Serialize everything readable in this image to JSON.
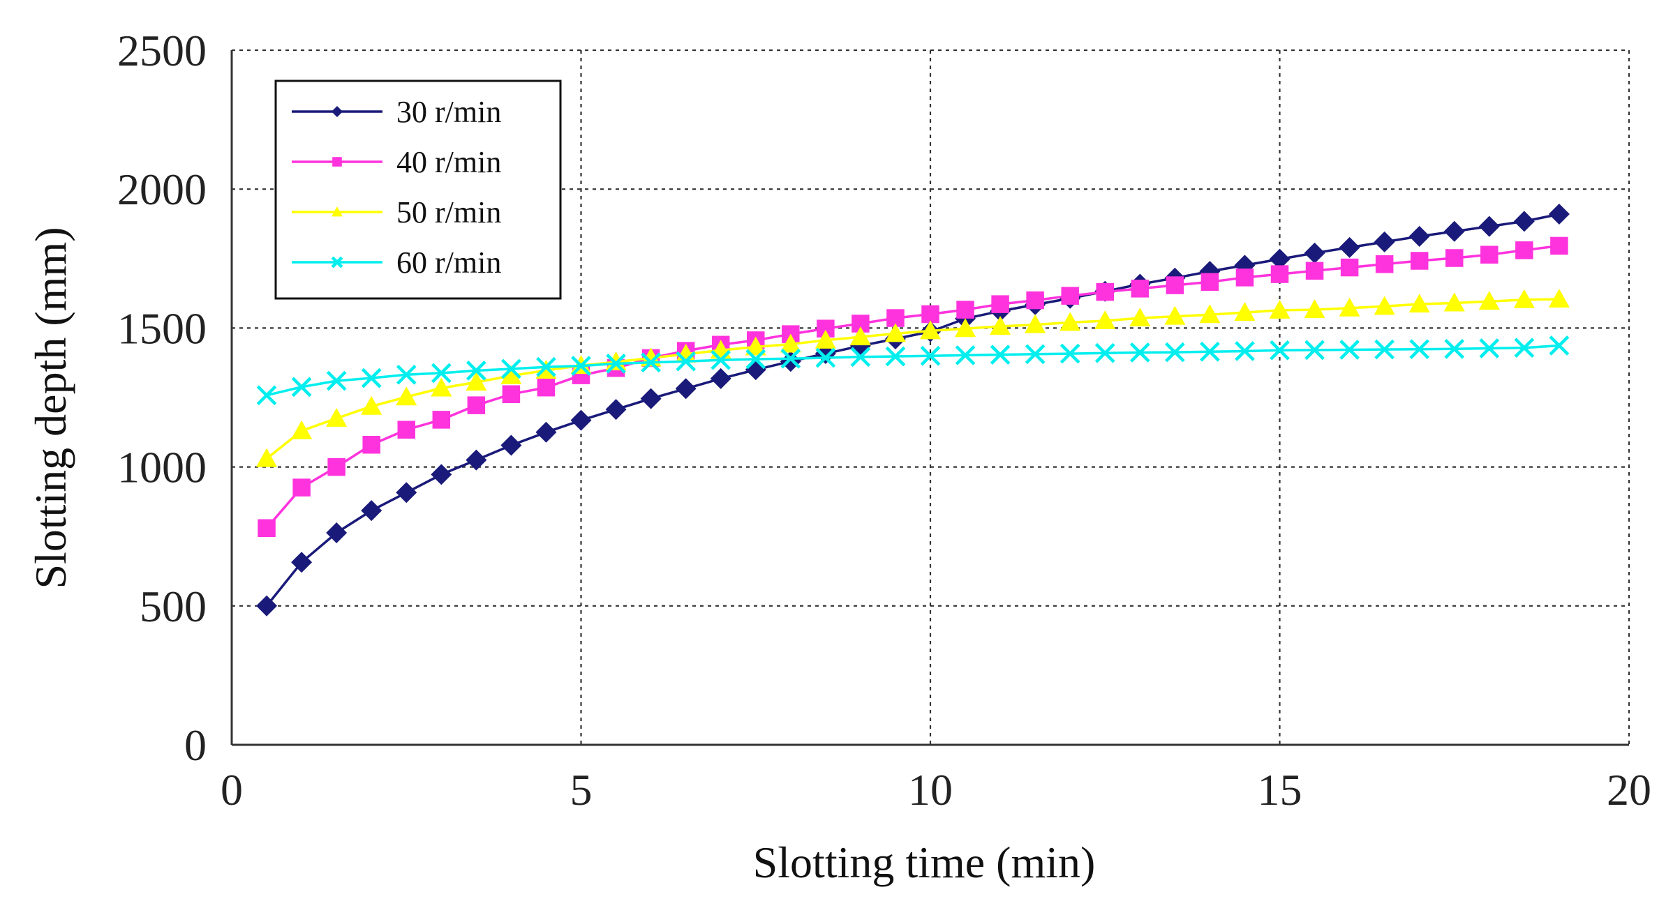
{
  "chart_data": {
    "type": "line",
    "title": "",
    "xlabel": "Slotting time (min)",
    "ylabel": "Slotting depth (mm)",
    "xlim": [
      0,
      20
    ],
    "ylim": [
      0,
      2500
    ],
    "xticks": [
      0,
      5,
      10,
      15,
      20
    ],
    "yticks": [
      0,
      500,
      1000,
      1500,
      2000,
      2500
    ],
    "grid": true,
    "legend_position": "top-left",
    "x": [
      0.5,
      1,
      1.5,
      2,
      2.5,
      3,
      3.5,
      4,
      4.5,
      5,
      5.5,
      6,
      6.5,
      7,
      7.5,
      8,
      8.5,
      9,
      9.5,
      10,
      10.5,
      11,
      11.5,
      12,
      12.5,
      13,
      13.5,
      14,
      14.5,
      15,
      15.5,
      16,
      16.5,
      17,
      17.5,
      18,
      18.5,
      19
    ],
    "series": [
      {
        "name": "30 r/min",
        "color": "#1a1a7a",
        "marker": "diamond",
        "values": [
          500,
          657,
          763,
          843,
          908,
          973,
          1025,
          1078,
          1125,
          1168,
          1207,
          1246,
          1282,
          1318,
          1350,
          1380,
          1408,
          1436,
          1461,
          1487,
          1534,
          1561,
          1584,
          1607,
          1632,
          1658,
          1680,
          1704,
          1726,
          1748,
          1770,
          1790,
          1810,
          1830,
          1848,
          1866,
          1884,
          1910
        ]
      },
      {
        "name": "40 r/min",
        "color": "#ff33dd",
        "marker": "square",
        "values": [
          780,
          926,
          1000,
          1080,
          1134,
          1170,
          1222,
          1262,
          1286,
          1330,
          1356,
          1392,
          1418,
          1440,
          1456,
          1478,
          1498,
          1516,
          1536,
          1550,
          1566,
          1586,
          1600,
          1616,
          1630,
          1642,
          1654,
          1666,
          1682,
          1694,
          1706,
          1718,
          1730,
          1742,
          1752,
          1764,
          1780,
          1796
        ]
      },
      {
        "name": "50 r/min",
        "color": "#ffff00",
        "marker": "triangle",
        "values": [
          1030,
          1130,
          1175,
          1218,
          1252,
          1284,
          1305,
          1328,
          1348,
          1365,
          1378,
          1392,
          1406,
          1420,
          1432,
          1442,
          1456,
          1468,
          1480,
          1490,
          1498,
          1506,
          1512,
          1520,
          1526,
          1536,
          1542,
          1548,
          1556,
          1564,
          1566,
          1572,
          1578,
          1586,
          1590,
          1596,
          1602,
          1604
        ]
      },
      {
        "name": "60 r/min",
        "color": "#00eeee",
        "marker": "x",
        "values": [
          1258,
          1288,
          1310,
          1320,
          1332,
          1338,
          1347,
          1353,
          1360,
          1364,
          1372,
          1376,
          1380,
          1385,
          1388,
          1390,
          1393,
          1396,
          1398,
          1400,
          1402,
          1404,
          1406,
          1408,
          1410,
          1412,
          1413,
          1415,
          1417,
          1420,
          1421,
          1422,
          1423,
          1424,
          1425,
          1427,
          1429,
          1437
        ]
      }
    ]
  }
}
